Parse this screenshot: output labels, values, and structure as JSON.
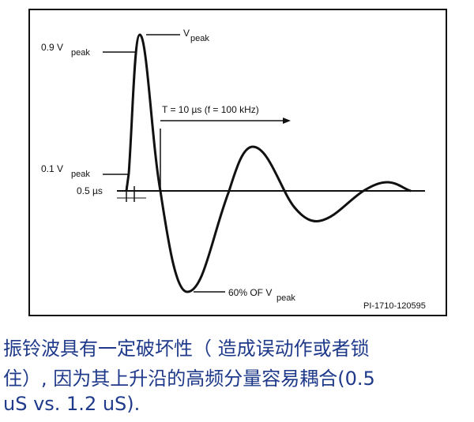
{
  "diagram": {
    "labels": {
      "v_peak_top": {
        "main": "V",
        "sub": "peak"
      },
      "v09": {
        "main": "0.9 V",
        "sub": "peak"
      },
      "v01": {
        "main": "0.1 V",
        "sub": "peak"
      },
      "rise": "0.5 µs",
      "period": "T = 10 µs (f = 100 kHz)",
      "undershoot": {
        "main": "60% OF V",
        "sub": "peak"
      },
      "figure_id": "PI-1710-120595"
    }
  },
  "caption": {
    "lines": [
      "振铃波具有一定破坏性（ 造成误动作或者锁",
      "住）, 因为其上升沿的高频分量容易耦合(0.5",
      "uS vs. 1.2 uS)."
    ]
  }
}
